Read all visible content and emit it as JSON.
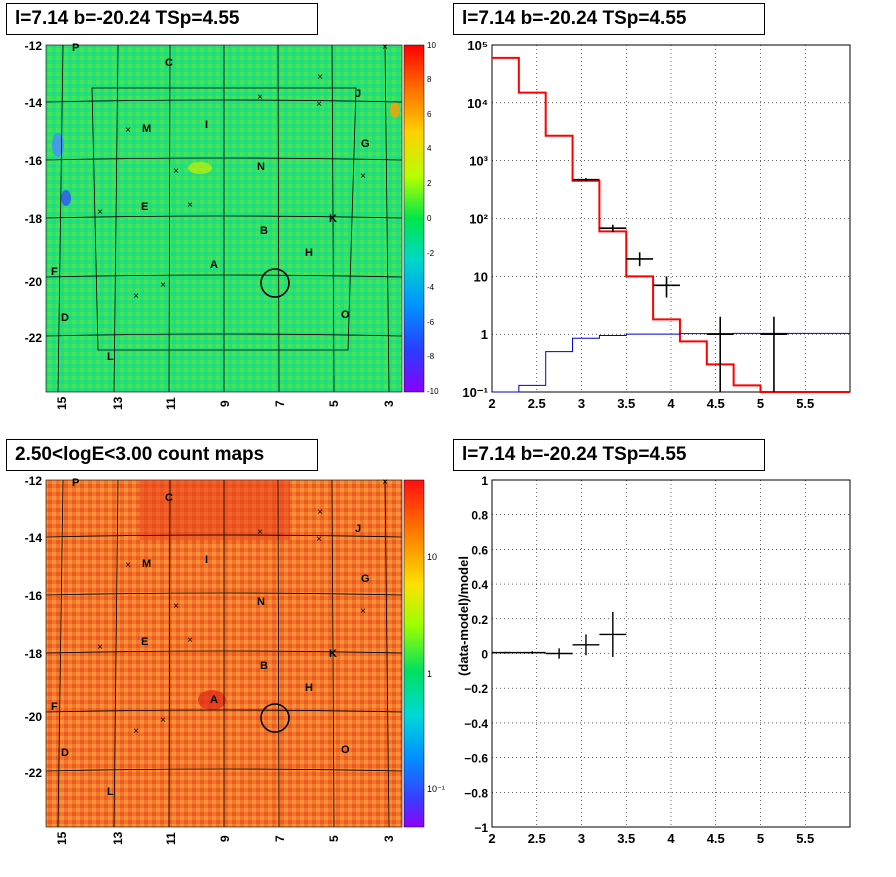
{
  "panels": {
    "tl_title": "l=7.14 b=-20.24 TSp=4.55",
    "tr_title": "l=7.14 b=-20.24 TSp=4.55",
    "bl_title": "2.50<logE<3.00 count maps",
    "br_title": "l=7.14 b=-20.24 TSp=4.55"
  },
  "colors": {
    "data": "#000000",
    "model_total": "#ff0000",
    "model_bkg": "#0000cc"
  },
  "maps": {
    "xticks": [
      "15",
      "13",
      "11",
      "9",
      "7",
      "5",
      "3"
    ],
    "yticks": [
      "-12",
      "-14",
      "-16",
      "-18",
      "-20",
      "-22"
    ],
    "source_labels": [
      "P",
      "C",
      "J",
      "M",
      "I",
      "G",
      "N",
      "E",
      "K",
      "B",
      "H",
      "A",
      "F",
      "D",
      "O",
      "L"
    ],
    "residual_colorbar": [
      "10",
      "8",
      "6",
      "4",
      "2",
      "0",
      "-2",
      "-4",
      "-6",
      "-8",
      "-10"
    ],
    "count_colorbar": [
      "10",
      "1",
      "10⁻¹"
    ]
  },
  "chart_data": [
    {
      "type": "line",
      "panel": "top-right spectrum",
      "xlim": [
        2,
        6
      ],
      "ylim": [
        0.1,
        100000
      ],
      "yscale": "log",
      "grid": true,
      "xticks": [
        "2",
        "2.5",
        "3",
        "3.5",
        "4",
        "4.5",
        "5",
        "5.5"
      ],
      "yticks": [
        "10⁵",
        "10⁴",
        "10³",
        "10²",
        "10",
        "1",
        "10⁻¹"
      ],
      "series": [
        {
          "kind": "step",
          "color": "model_total",
          "edges": [
            2.0,
            2.3,
            2.6,
            2.9,
            3.2,
            3.5,
            3.8,
            4.1,
            4.4,
            4.7,
            5.0,
            5.3,
            5.6,
            6.0
          ],
          "values": [
            60000,
            15000,
            2700,
            450,
            60,
            10,
            1.8,
            0.75,
            0.3,
            0.13,
            0.1,
            0.1,
            0.1
          ]
        },
        {
          "kind": "step",
          "color": "model_bkg",
          "edges": [
            2.0,
            2.3,
            2.6,
            2.9,
            3.2,
            3.5,
            3.8,
            4.1,
            4.4,
            4.7,
            5.0,
            5.3,
            5.6,
            6.0
          ],
          "values": [
            0.09,
            0.13,
            0.5,
            0.85,
            0.95,
            1.0,
            1.0,
            1.02,
            1.02,
            1.03,
            1.03,
            1.03,
            1.03
          ]
        },
        {
          "kind": "errorbars",
          "color": "data",
          "points": [
            {
              "x": 3.05,
              "xerr": 0.15,
              "y": 470,
              "ylo": 440,
              "yhi": 500
            },
            {
              "x": 3.35,
              "xerr": 0.15,
              "y": 68,
              "ylo": 58,
              "yhi": 78
            },
            {
              "x": 3.65,
              "xerr": 0.15,
              "y": 20,
              "ylo": 15,
              "yhi": 26
            },
            {
              "x": 3.95,
              "xerr": 0.15,
              "y": 7,
              "ylo": 4.3,
              "yhi": 10
            },
            {
              "x": 4.55,
              "xerr": 0.15,
              "y": 1,
              "ylo": 0.1,
              "yhi": 2
            },
            {
              "x": 5.15,
              "xerr": 0.15,
              "y": 1,
              "ylo": 0.1,
              "yhi": 2
            }
          ]
        }
      ]
    },
    {
      "type": "scatter",
      "panel": "bottom-right residuals",
      "ylabel": "(data-model)/model",
      "xlim": [
        2,
        6
      ],
      "ylim": [
        -1,
        1
      ],
      "grid": true,
      "xticks": [
        "2",
        "2.5",
        "3",
        "3.5",
        "4",
        "4.5",
        "5",
        "5.5"
      ],
      "yticks": [
        "1",
        "0.8",
        "0.6",
        "0.4",
        "0.2",
        "0",
        "−0.2",
        "−0.4",
        "−0.6",
        "−0.8",
        "−1"
      ],
      "points": [
        {
          "x": 2.15,
          "xerr": 0.15,
          "y": 0.005,
          "yerr": 0.005
        },
        {
          "x": 2.45,
          "xerr": 0.15,
          "y": 0.005,
          "yerr": 0.008
        },
        {
          "x": 2.75,
          "xerr": 0.15,
          "y": 0.0,
          "yerr": 0.03
        },
        {
          "x": 3.05,
          "xerr": 0.15,
          "y": 0.05,
          "yerr": 0.06
        },
        {
          "x": 3.35,
          "xerr": 0.15,
          "y": 0.11,
          "yerr": 0.13
        }
      ]
    }
  ]
}
